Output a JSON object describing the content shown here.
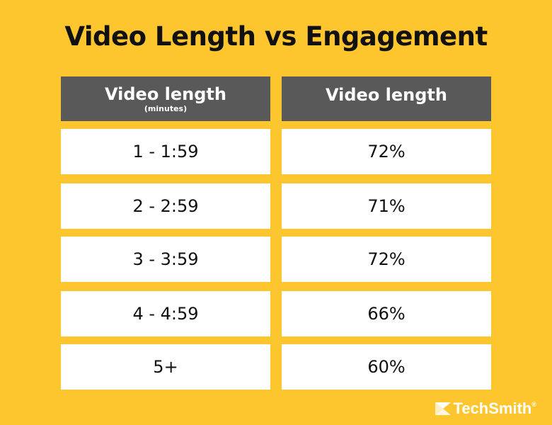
{
  "title": "Video Length vs Engagement",
  "headers": {
    "col1_main": "Video length",
    "col1_sub": "(minutes)",
    "col2_main": "Video length"
  },
  "chart_data": {
    "type": "table",
    "title": "Video Length vs Engagement",
    "columns": [
      "Video length (minutes)",
      "Video length"
    ],
    "rows": [
      {
        "length": "1 - 1:59",
        "value": "72%"
      },
      {
        "length": "2 - 2:59",
        "value": "71%"
      },
      {
        "length": "3 - 3:59",
        "value": "72%"
      },
      {
        "length": "4 - 4:59",
        "value": "66%"
      },
      {
        "length": "5+",
        "value": "60%"
      }
    ]
  },
  "brand": {
    "name": "TechSmith",
    "mark": "®",
    "logo_icon": "techsmith-logo-icon"
  },
  "colors": {
    "background": "#FDC62E",
    "header": "#595959",
    "cell": "#FFFFFF"
  }
}
